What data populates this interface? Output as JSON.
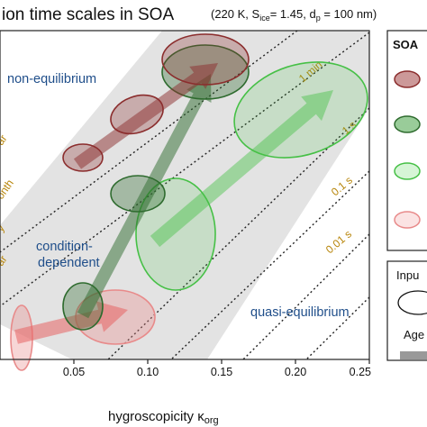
{
  "chart_data": {
    "type": "scatter",
    "title": "ion time scales in SOA",
    "subtitle": {
      "prefix": "(220 K, S",
      "sub1": "ice",
      "mid": "= 1.45, d",
      "sub2": "p",
      "suffix": " = 100 nm)"
    },
    "xlabel": "hygroscopicity κ",
    "xlabel_sub": "org",
    "xlim": [
      0.0,
      0.25
    ],
    "x_ticks": [
      "0.05",
      "0.10",
      "0.15",
      "0.20",
      "0.25"
    ],
    "x_tick_values": [
      0.05,
      0.1,
      0.15,
      0.2,
      0.25
    ],
    "regions": [
      "non-equilibrium",
      "condition-",
      "dependent",
      "quasi-equilibrium"
    ],
    "timescale_labels": [
      "1 min",
      "1 s",
      "0.1 s",
      "0.01 s",
      "ar",
      "onth",
      "ar",
      "y"
    ],
    "legend": {
      "title": "SOA",
      "input_label": "Inpu",
      "aged_label": "Age"
    },
    "series": [
      {
        "color": "#8b2d2d",
        "points": [
          {
            "kappa": 0.085,
            "inputs": [
              [
                0.084,
                0.086
              ],
              [
                0.122,
                0.124
              ],
              [
                0.158,
                0.16
              ]
            ],
            "aged": [
              0.136,
              0.156
            ]
          },
          {
            "kappa": 0.122,
            "inputs": [],
            "aged": null
          }
        ]
      },
      {
        "color": "#2e6b2e",
        "points": [
          {
            "kappa": 0.082,
            "inputs": [
              [
                0.082,
                0.084
              ],
              [
                0.118,
                0.12
              ]
            ],
            "aged": [
              0.15,
              0.158
            ]
          }
        ]
      },
      {
        "color": "#46c046",
        "points": [
          {
            "kappa": 0.13,
            "inputs": [
              [
                0.13,
                0.132
              ],
              [
                0.165,
                0.167
              ],
              [
                0.2,
                0.202
              ]
            ],
            "aged": [
              0.2,
              0.22
            ]
          }
        ]
      },
      {
        "color": "#e88a8a",
        "points": [
          {
            "kappa": 0.05,
            "inputs": [
              [
                0.05,
                0.052
              ],
              [
                0.118,
                0.12
              ]
            ],
            "aged": [
              0.1,
              0.122
            ]
          }
        ]
      }
    ]
  },
  "colors": {
    "dark_red": "#8b2d2d",
    "dark_green": "#2e6b2e",
    "light_green": "#46c046",
    "light_red": "#e88a8a",
    "region_text": "#1f4e8a",
    "timescale_text": "#b8860b"
  }
}
